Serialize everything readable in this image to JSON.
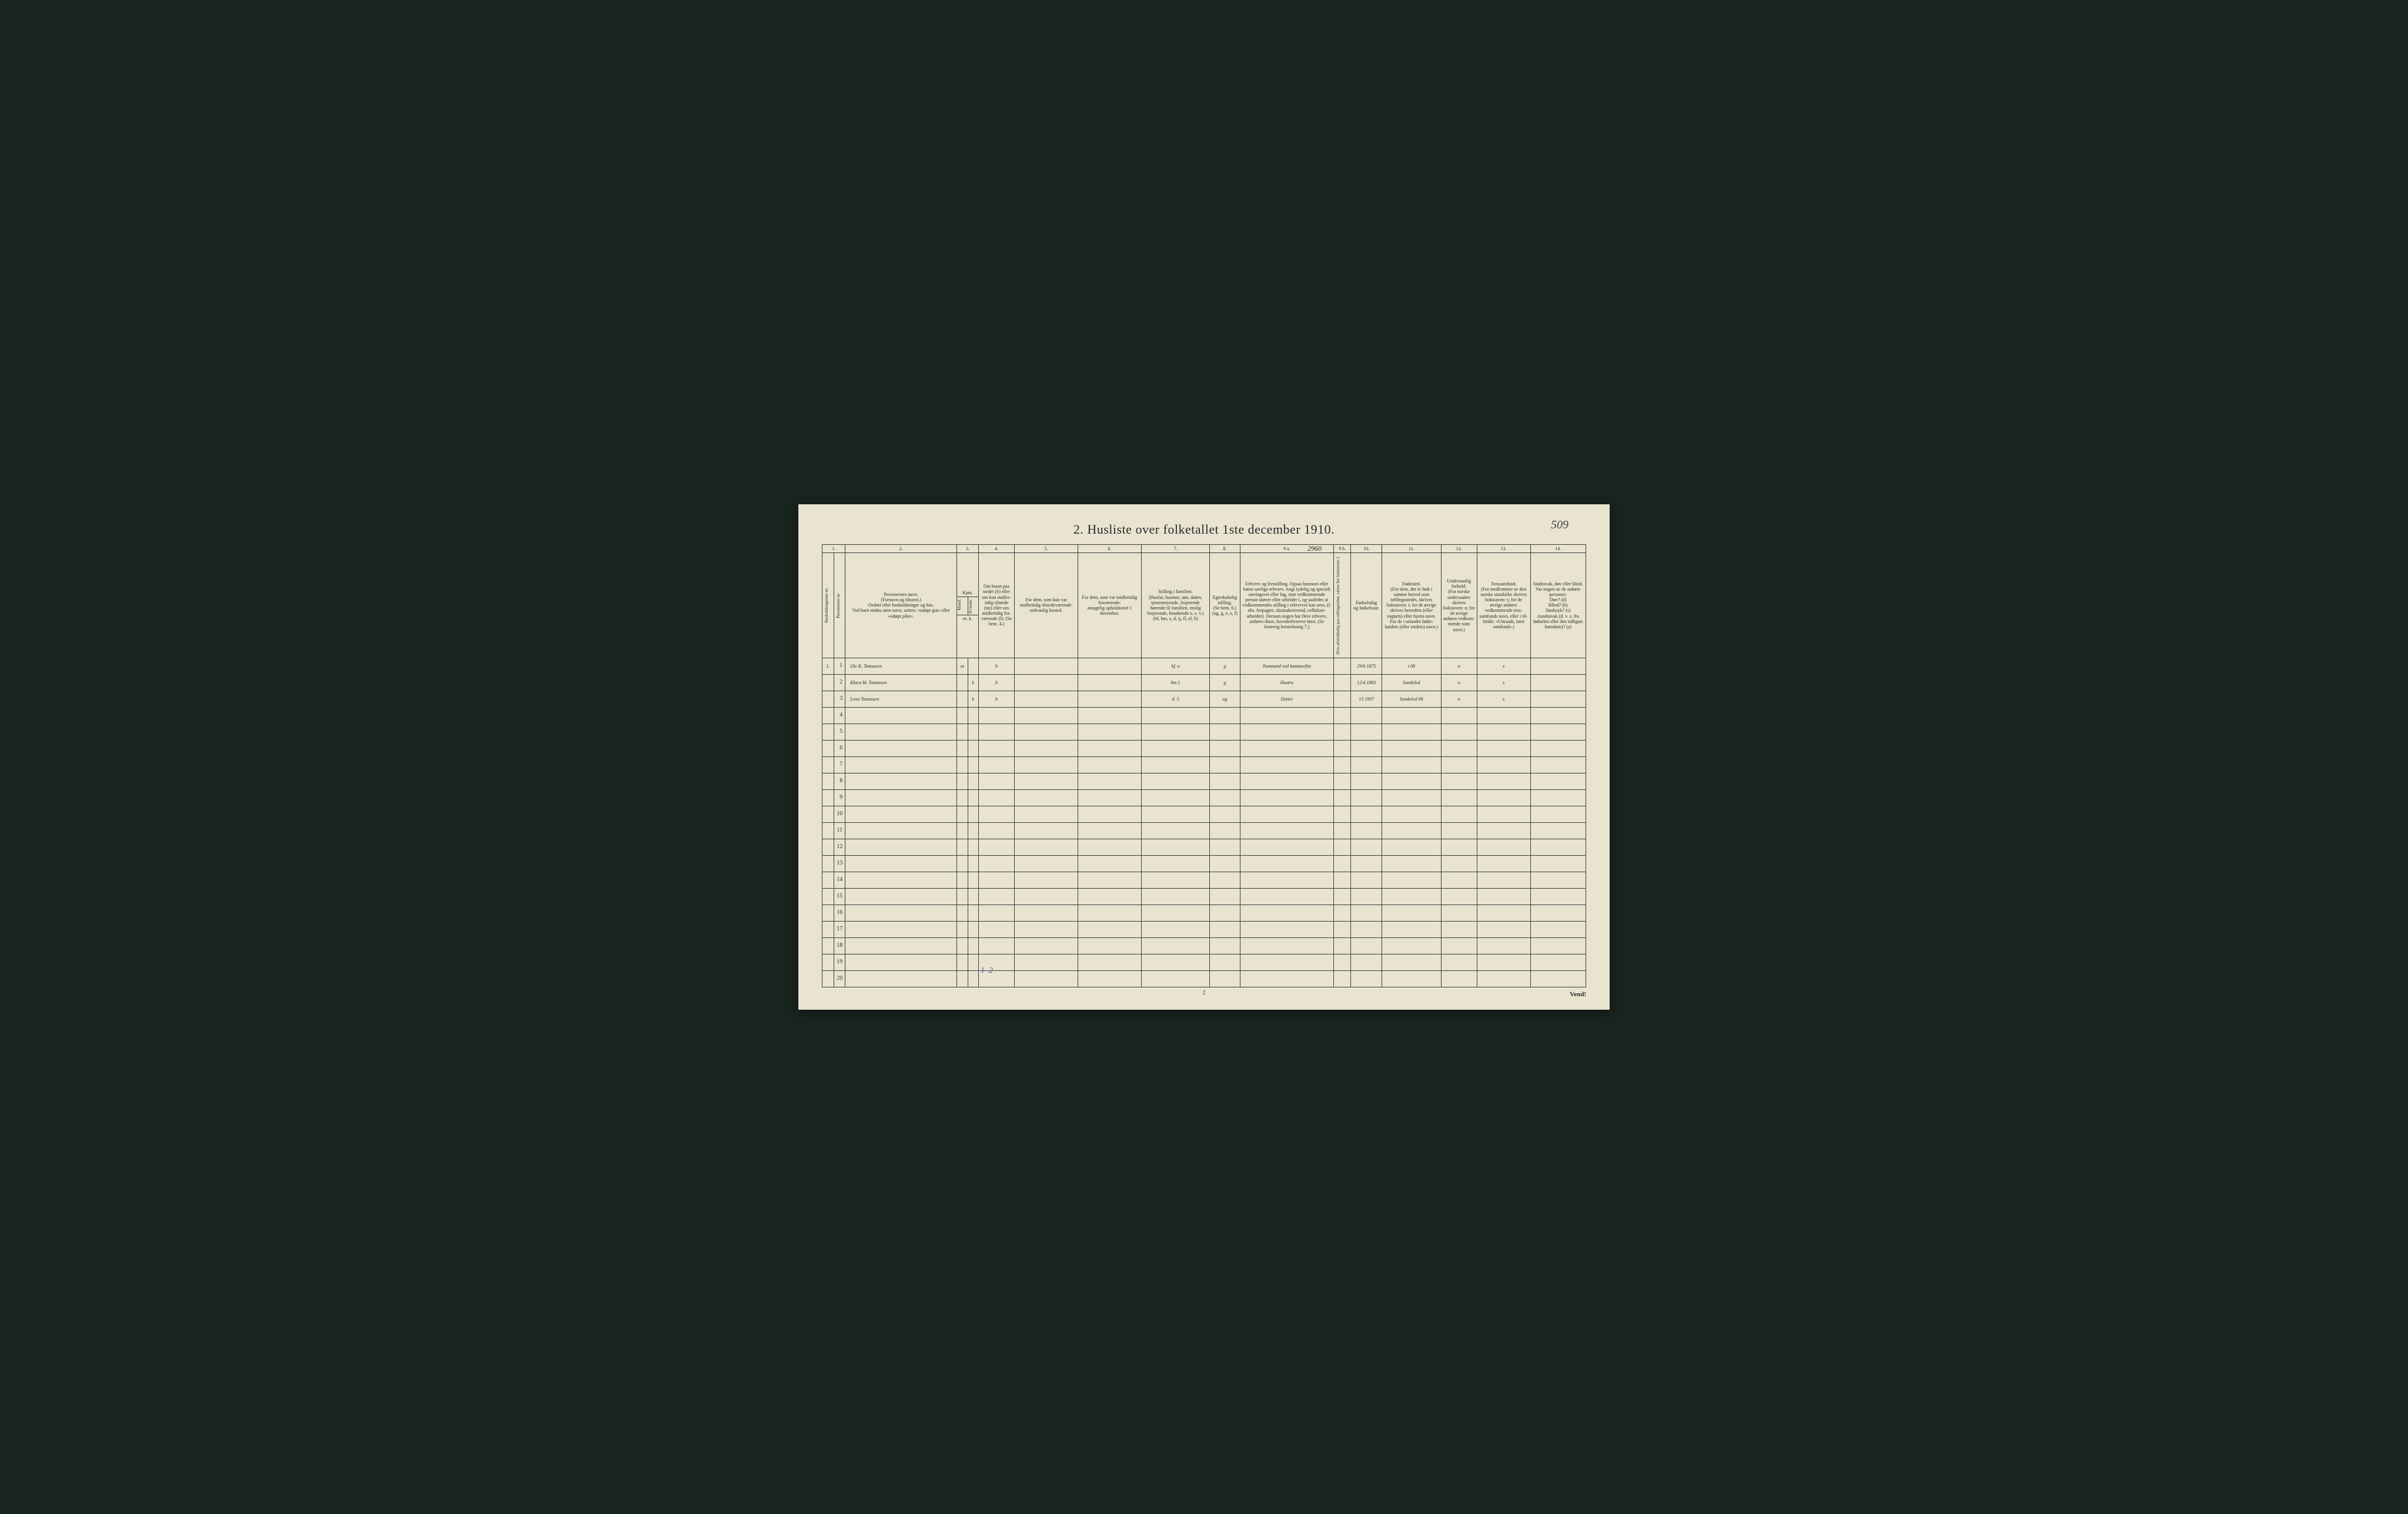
{
  "title": "2.  Husliste over folketallet 1ste december 1910.",
  "page_number_handwritten": "509",
  "footer_page_num": "2",
  "vend_label": "Vend!",
  "bottom_annotation": "1–2",
  "colors": {
    "paper": "#e8e4d0",
    "ink": "#2a2a2a",
    "rule": "#3a3a3a",
    "handwriting": "#3a3a3a",
    "pencil_blue": "#5a5aa8",
    "background": "#1a2520"
  },
  "column_numbers": [
    "1.",
    "2.",
    "3.",
    "4.",
    "5.",
    "6.",
    "7.",
    "8.",
    "9 a.",
    "9 b.",
    "10.",
    "11.",
    "12.",
    "13.",
    "14."
  ],
  "column_widths_pct": [
    3.2,
    15.5,
    3.0,
    5.0,
    8.8,
    8.8,
    9.5,
    4.2,
    13.0,
    2.4,
    4.3,
    8.2,
    5.0,
    7.4,
    7.7
  ],
  "headers": {
    "c1a": "Husholdningernes nr.",
    "c1b": "Personernes nr.",
    "c2": "Personernes navn.\n(Fornavn og tilnavn.)\nOrdnet efter husholdninger og hus.\nVed barn endnu uten navn, sættes: «udøpt gut» eller «udøpt pike».",
    "c3": "Kjøn.",
    "c3a": "Mænd.",
    "c3b": "Kvinder.",
    "c3_mk": "m.  k.",
    "c4": "Om bosat paa stedet (b) eller om kun midler­tidig tilstede (mt) eller om midler­tidig fra­værende (f). (Se bem. 4.)",
    "c5": "For dem, som kun var midlertidig tilstede­værende:\nsedvanlig bosted.",
    "c6": "For dem, som var midlertidig fraværende:\nantagelig opholdssted 1 december.",
    "c7": "Stilling i familien.\n(Husfar, husmor, søn, datter, tjenestetyende, lo­sjerende hørende til familien, enslig losjerende, besøkende o. s. v.)\n(hf, hm, s, d, tj, fl, el, b)",
    "c8": "Egteska­belig stilling.\n(Se bem. 6.)\n(ug, g, e, s, f)",
    "c9a": "Erhverv og livsstilling.\nOgsaa husmors eller barns særlige erhverv. Angi tydelig og specielt næringsvei eller fag, som vedkommende person utøver eller arbeider i, og saaledes at vedkommendes stilling i erhvervet kan sees, (f. eks. forpagter, skomakersvend, cellulose­arbeider). Dersom nogen har flere erhverv, anføres disse, hovederhvervet først. (Se forøvrig bemerkning 7.)",
    "c9b": "Hvis arbeidsledig paa tællingstiden, sættes her bokstaven: l.",
    "c10": "Fødsels­dag og fødsels­aar.",
    "c11": "Fødested.\n(For dem, der er født i samme herred som tællingsstedet, skrives bokstaven: t; for de øvrige skrives herredets (eller sognets) eller byens navn. For de i utlandet fødte: landets (eller stedets) navn.)",
    "c12": "Undersaatlig forhold.\n(For norske under­saatter skrives bokstaven: n; for de øvrige anføres vedkom­mende stats navn.)",
    "c13": "Trossamfund.\n(For medlemmer av den norske statskirke skrives bokstaven: s; for de øvrige anføres vedkommende tros­samfunds navn, eller i til­fælde: «Uttraadt, intet samfund».)",
    "c14": "Sindssvak, døv eller blind.\nVar nogen av de anførte personer:\nDøv?  (d)\nBlind?  (b)\nSindssyk?  (s)\nAandssvak (d. v. s. fra fødselen eller den tid­ligste barndom)?  (a)"
  },
  "rows": [
    {
      "hh": "1.",
      "pn": "1",
      "name": "Ole K. Tomassen",
      "sex_m": "m",
      "sex_k": "",
      "status": "b",
      "c5": "",
      "c6": "",
      "fam": "hf.    o",
      "marital": "g",
      "occ": "Tommand ved hammerfist",
      "ledig": "",
      "birth": "29/6 1875",
      "birthplace": "t   08",
      "subj": "n",
      "faith": "s",
      "c14": ""
    },
    {
      "hh": "",
      "pn": "2",
      "name": "Klara M. Tomassen",
      "sex_m": "",
      "sex_k": "k",
      "status": "b",
      "c5": "",
      "c6": "",
      "fam": "hm    1",
      "marital": "g",
      "occ": "Hustru",
      "ledig": "",
      "birth": "12/4 1883",
      "birthplace": "Sondeled",
      "subj": "n",
      "faith": "s",
      "c14": ""
    },
    {
      "hh": "",
      "pn": "3",
      "name": "Lena Tomassen",
      "sex_m": "",
      "sex_k": "k",
      "status": "b",
      "c5": "",
      "c6": "",
      "fam": "d.    5",
      "marital": "ug",
      "occ": "Datter",
      "ledig": "",
      "birth": "13 1907",
      "birthplace": "Sondeled  08",
      "subj": "n",
      "faith": "s",
      "c14": ""
    }
  ],
  "empty_rows_after": 17,
  "extra_mark_col9": "2960"
}
